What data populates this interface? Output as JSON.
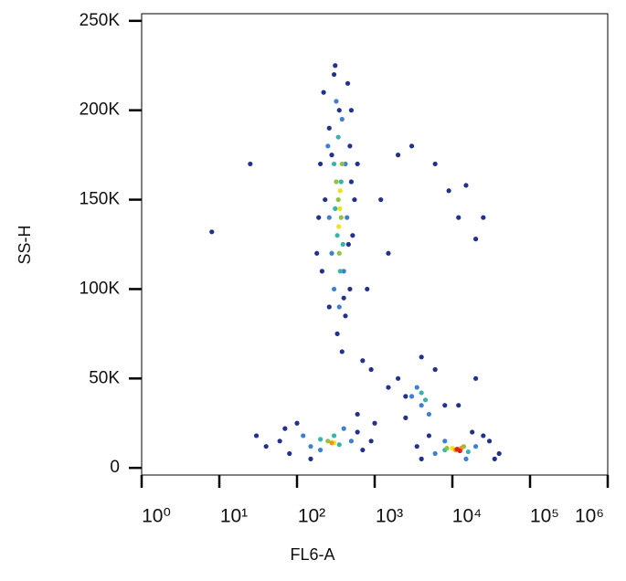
{
  "chart_data": {
    "type": "scatter",
    "xlabel": "FL6-A",
    "ylabel": "SS-H",
    "xscale": "log",
    "xlim": [
      1,
      1000000
    ],
    "xticks": [
      {
        "value": 1,
        "label": "10⁰"
      },
      {
        "value": 10,
        "label": "10¹"
      },
      {
        "value": 100,
        "label": "10²"
      },
      {
        "value": 1000,
        "label": "10³"
      },
      {
        "value": 10000,
        "label": "10⁴"
      },
      {
        "value": 100000,
        "label": "10⁵"
      },
      {
        "value": 1000000,
        "label": "10⁶"
      }
    ],
    "ylim": [
      -4000,
      254000
    ],
    "yticks": [
      0,
      {
        "value": 50000,
        "label": "50K"
      },
      {
        "value": 100000,
        "label": "100K"
      },
      {
        "value": 150000,
        "label": "150K"
      },
      {
        "value": 200000,
        "label": "200K"
      },
      {
        "value": 250000,
        "label": "250K"
      }
    ],
    "series": [
      {
        "color": "#24318c",
        "x": [
          220,
          300,
          450,
          260,
          480,
          200,
          500,
          190,
          520,
          210,
          480,
          260,
          420,
          330,
          380,
          350,
          280,
          460,
          230,
          400,
          310,
          500,
          180,
          550,
          600,
          8,
          25,
          1200,
          2000,
          3000,
          6000,
          9000,
          15000,
          25000,
          20000,
          12000,
          1500,
          800,
          700,
          900,
          1500,
          2500,
          600,
          1000,
          12000,
          20000,
          18000,
          30000,
          40000,
          60,
          80,
          70,
          100,
          600,
          700,
          40,
          30,
          900,
          150,
          2000,
          6000,
          8000,
          2500,
          4000,
          4000,
          5000,
          25000,
          35000,
          3500
        ],
        "values": [
          210000,
          220000,
          215000,
          190000,
          180000,
          170000,
          160000,
          140000,
          130000,
          110000,
          100000,
          90000,
          85000,
          75000,
          65000,
          200000,
          175000,
          125000,
          150000,
          95000,
          225000,
          200000,
          120000,
          150000,
          170000,
          132000,
          170000,
          150000,
          175000,
          180000,
          170000,
          155000,
          158000,
          140000,
          128000,
          140000,
          120000,
          100000,
          60000,
          55000,
          45000,
          40000,
          30000,
          25000,
          35000,
          50000,
          20000,
          15000,
          8000,
          15000,
          8000,
          22000,
          25000,
          20000,
          10000,
          12000,
          18000,
          15000,
          5000,
          50000,
          55000,
          35000,
          28000,
          62000,
          5000,
          18000,
          18000,
          5000,
          12000
        ]
      },
      {
        "color": "#3f7fd1",
        "x": [
          250,
          420,
          280,
          400,
          300,
          350,
          260,
          440,
          320,
          380,
          120,
          200,
          500,
          400,
          150,
          3500,
          5000,
          4000,
          3000,
          6000,
          20000,
          8000,
          15000
        ],
        "values": [
          180000,
          170000,
          120000,
          110000,
          100000,
          90000,
          140000,
          140000,
          205000,
          195000,
          18000,
          10000,
          15000,
          22000,
          12000,
          45000,
          30000,
          35000,
          40000,
          8000,
          12000,
          15000,
          5000
        ]
      },
      {
        "color": "#38b3ad",
        "x": [
          300,
          370,
          330,
          390,
          310,
          360,
          340,
          200,
          350,
          300,
          4000,
          4500,
          8000,
          16000
        ],
        "values": [
          170000,
          160000,
          130000,
          125000,
          145000,
          110000,
          185000,
          16000,
          13000,
          18000,
          42000,
          38000,
          10000,
          9000
        ]
      },
      {
        "color": "#8cc63f",
        "x": [
          340,
          370,
          320,
          350,
          380,
          250,
          8500,
          14000
        ],
        "values": [
          150000,
          140000,
          160000,
          120000,
          170000,
          15000,
          11000,
          12000
        ]
      },
      {
        "color": "#f2e21b",
        "x": [
          355,
          345,
          360,
          300,
          10000
        ],
        "values": [
          145000,
          135000,
          155000,
          14000,
          11000
        ]
      },
      {
        "color": "#f7941d",
        "x": [
          280,
          11000,
          13000
        ],
        "values": [
          14000,
          10000,
          11000
        ]
      },
      {
        "color": "#e2231a",
        "x": [
          11500,
          12500
        ],
        "values": [
          10500,
          9500
        ]
      }
    ]
  }
}
